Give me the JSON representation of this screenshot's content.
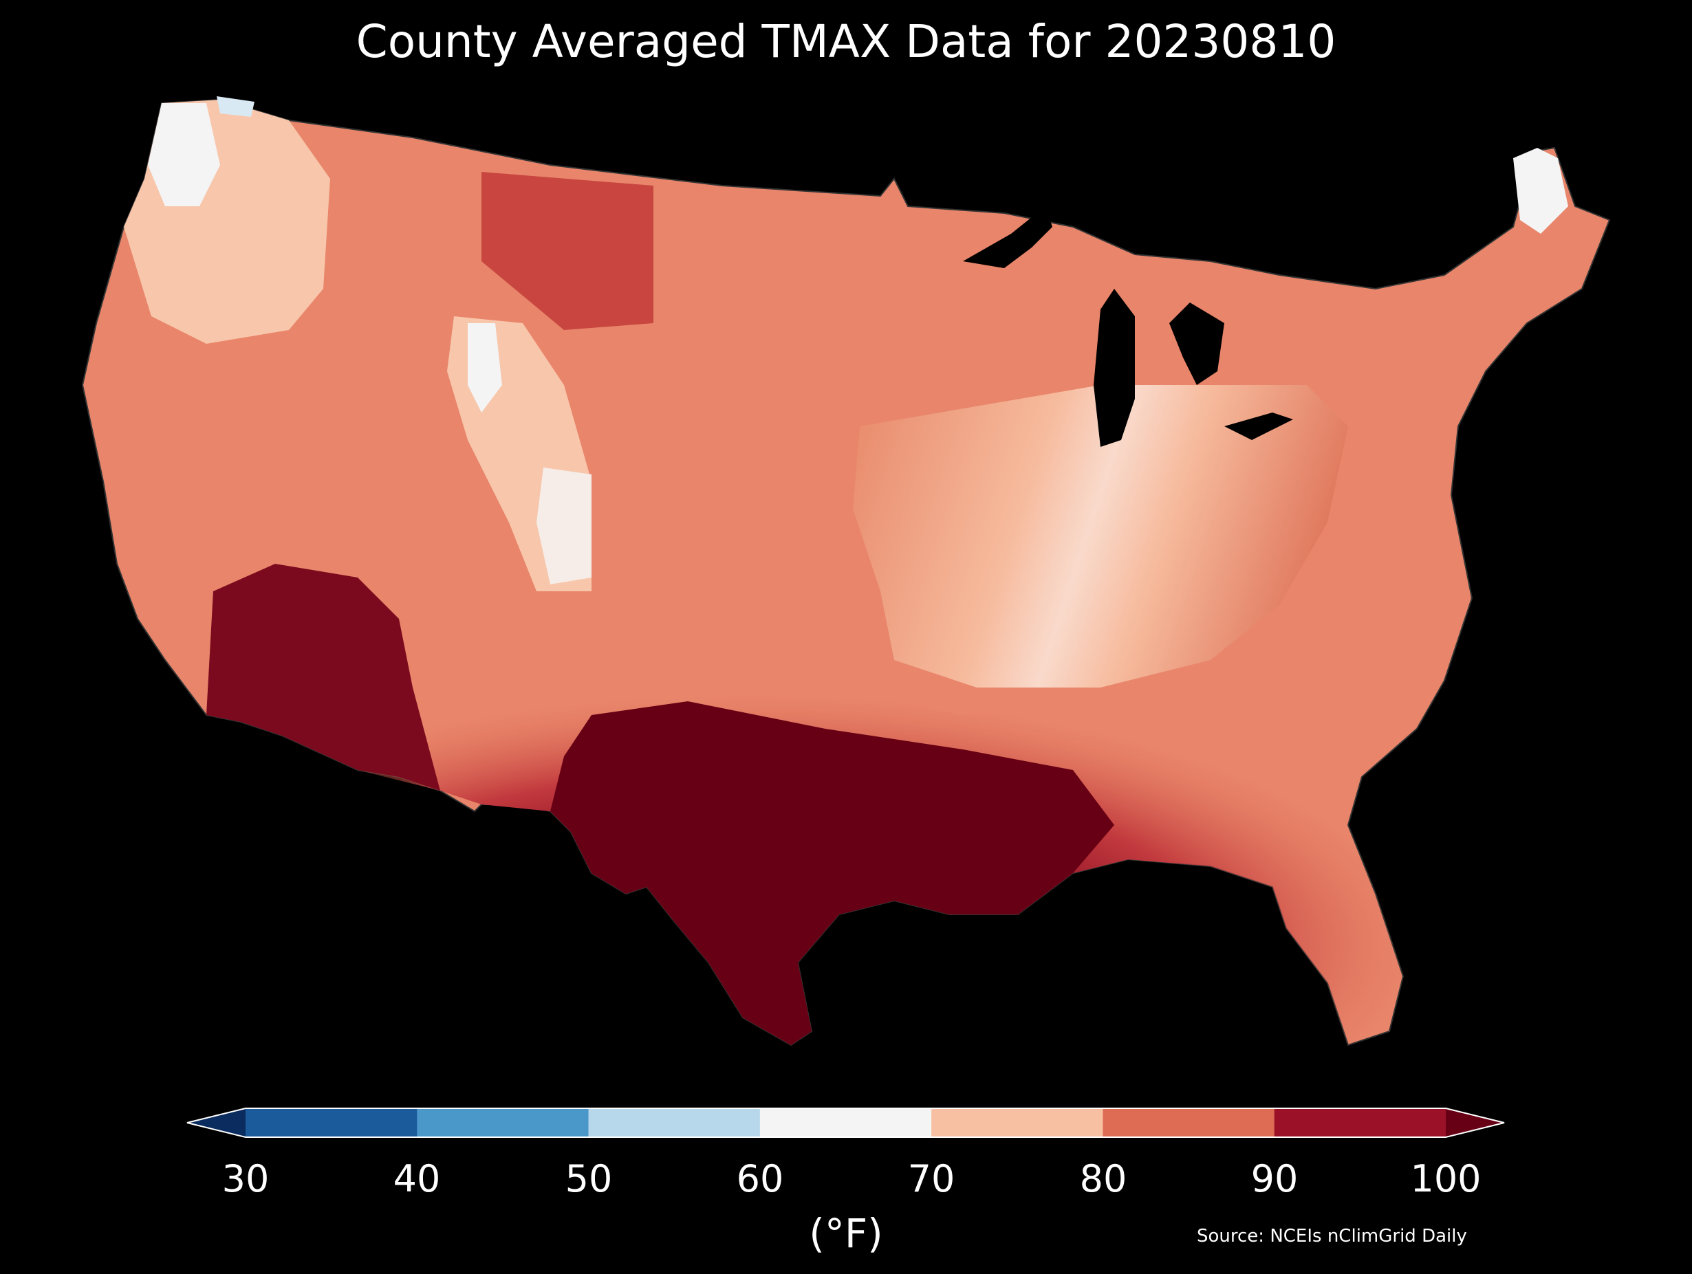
{
  "title": "County Averaged TMAX Data for 20230810",
  "colorbar": {
    "ticks": [
      "30",
      "40",
      "50",
      "60",
      "70",
      "80",
      "90",
      "100"
    ],
    "bins": [
      {
        "range": "<30",
        "color": "#0b2c5e"
      },
      {
        "range": "30-40",
        "color": "#1b5a9b"
      },
      {
        "range": "40-50",
        "color": "#4a98c9"
      },
      {
        "range": "50-60",
        "color": "#b7d8ea"
      },
      {
        "range": "60-70",
        "color": "#f4f4f4"
      },
      {
        "range": "70-80",
        "color": "#f8c0a2"
      },
      {
        "range": "80-90",
        "color": "#de6c55"
      },
      {
        "range": "90-100",
        "color": "#9b1228"
      },
      {
        "range": ">100",
        "color": "#670014"
      }
    ],
    "unit": "(°F)"
  },
  "source": "Source: NCEIs nClimGrid Daily",
  "map_regions": {
    "background": "#000000",
    "ocean": "#000000",
    "cool_northwest": "#f4f4f4",
    "very_hot_southwest": "#9b1228",
    "extreme_south_central": "#670014"
  }
}
